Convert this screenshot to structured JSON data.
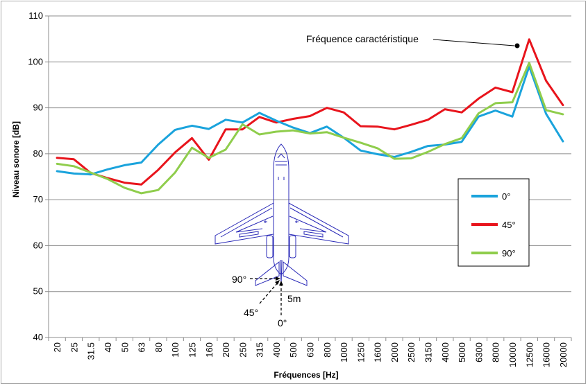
{
  "chart_data": {
    "type": "line",
    "title": "",
    "xlabel": "Fréquences [Hz]",
    "ylabel": "Niveau sonore [dB]",
    "ylim": [
      40,
      110
    ],
    "yticks": [
      40,
      50,
      60,
      70,
      80,
      90,
      100,
      110
    ],
    "grid": "horizontal",
    "legend_position": "right",
    "categories": [
      "20",
      "25",
      "31.5",
      "40",
      "50",
      "63",
      "80",
      "100",
      "125",
      "160",
      "200",
      "250",
      "315",
      "400",
      "500",
      "630",
      "800",
      "1000",
      "1250",
      "1600",
      "2000",
      "2500",
      "3150",
      "4000",
      "5000",
      "6300",
      "8000",
      "10000",
      "12500",
      "16000",
      "20000"
    ],
    "series": [
      {
        "name": "0°",
        "color": "#1aa3dc",
        "values": [
          76.2,
          75.7,
          75.5,
          76.6,
          77.5,
          78.1,
          82.0,
          85.2,
          86.1,
          85.4,
          87.4,
          86.8,
          88.9,
          87.2,
          85.7,
          84.5,
          85.9,
          83.5,
          80.7,
          79.9,
          79.3,
          80.4,
          81.7,
          82.0,
          82.6,
          88.1,
          89.4,
          88.1,
          99.0,
          88.7,
          82.7
        ]
      },
      {
        "name": "45°",
        "color": "#e8141c",
        "values": [
          79.1,
          78.8,
          75.8,
          74.7,
          73.7,
          73.3,
          76.5,
          80.3,
          83.4,
          78.7,
          85.3,
          85.3,
          88.0,
          86.8,
          87.6,
          88.2,
          90.0,
          89.0,
          86.0,
          85.9,
          85.3,
          86.3,
          87.4,
          89.7,
          89.0,
          92.0,
          94.4,
          93.4,
          104.9,
          95.9,
          90.6
        ]
      },
      {
        "name": "90°",
        "color": "#8fcd4c",
        "values": [
          77.8,
          77.3,
          75.9,
          74.5,
          72.6,
          71.4,
          72.1,
          75.9,
          81.3,
          79.1,
          80.9,
          86.4,
          84.2,
          84.8,
          85.1,
          84.4,
          84.7,
          83.5,
          82.4,
          81.2,
          78.9,
          79.0,
          80.4,
          82.1,
          83.4,
          88.8,
          91.0,
          91.2,
          99.8,
          89.5,
          88.6
        ]
      }
    ],
    "annotations": {
      "characteristic": "Fréquence caractéristique",
      "angle_90": "90°",
      "angle_45": "45°",
      "angle_0": "0°",
      "distance": "5m"
    }
  }
}
